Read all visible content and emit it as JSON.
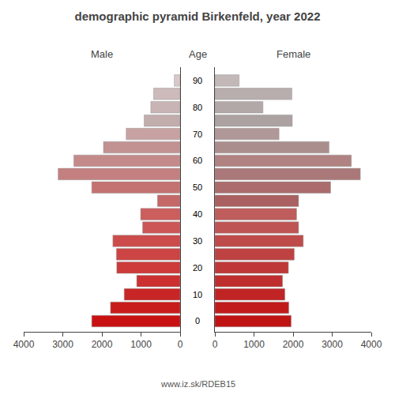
{
  "chart_data": {
    "type": "bar",
    "orientation": "horizontal",
    "title": "demographic pyramid Birkenfeld, year 2022",
    "y_label": "Age",
    "annotations": [
      "www.iz.sk/RDEB15"
    ],
    "categories": [
      90,
      85,
      80,
      75,
      70,
      65,
      60,
      55,
      50,
      45,
      40,
      35,
      30,
      25,
      20,
      15,
      10,
      5,
      0
    ],
    "series": [
      {
        "name": "Male",
        "values": [
          150,
          680,
          750,
          920,
          1380,
          1960,
          2720,
          3120,
          2260,
          580,
          1010,
          960,
          1720,
          1630,
          1620,
          1110,
          1430,
          1780,
          2260
        ],
        "colors": [
          "#dac8c8",
          "#cdbaba",
          "#c8b4b4",
          "#c2adad",
          "#c8a2a2",
          "#c29292",
          "#c48a8a",
          "#c48080",
          "#c47272",
          "#c46868",
          "#cc5e5e",
          "#cc5656",
          "#cc4c4c",
          "#cc4444",
          "#cc3a3a",
          "#cc3030",
          "#c82626",
          "#c81c1c",
          "#c81212"
        ]
      },
      {
        "name": "Female",
        "values": [
          620,
          1970,
          1230,
          1980,
          1640,
          2920,
          3490,
          3720,
          2960,
          2140,
          2090,
          2140,
          2260,
          2030,
          1880,
          1730,
          1790,
          1890,
          1950
        ],
        "colors": [
          "#c2b8b8",
          "#b8aeae",
          "#b2a8a8",
          "#aca2a2",
          "#b09898",
          "#aa8e8e",
          "#b08282",
          "#aa7878",
          "#aa6c6c",
          "#aa6060",
          "#bf5c5c",
          "#bf5454",
          "#bf4a4a",
          "#bf4242",
          "#bf3838",
          "#bf2e2e",
          "#c02424",
          "#c01c1c",
          "#c01414"
        ]
      }
    ],
    "xlim": [
      0,
      4000
    ],
    "xticks": [
      0,
      1000,
      2000,
      3000,
      4000
    ],
    "ylim": [
      -4,
      95
    ],
    "yticks": [
      0,
      10,
      20,
      30,
      40,
      50,
      60,
      70,
      80,
      90
    ],
    "grid": false,
    "legend": false
  }
}
